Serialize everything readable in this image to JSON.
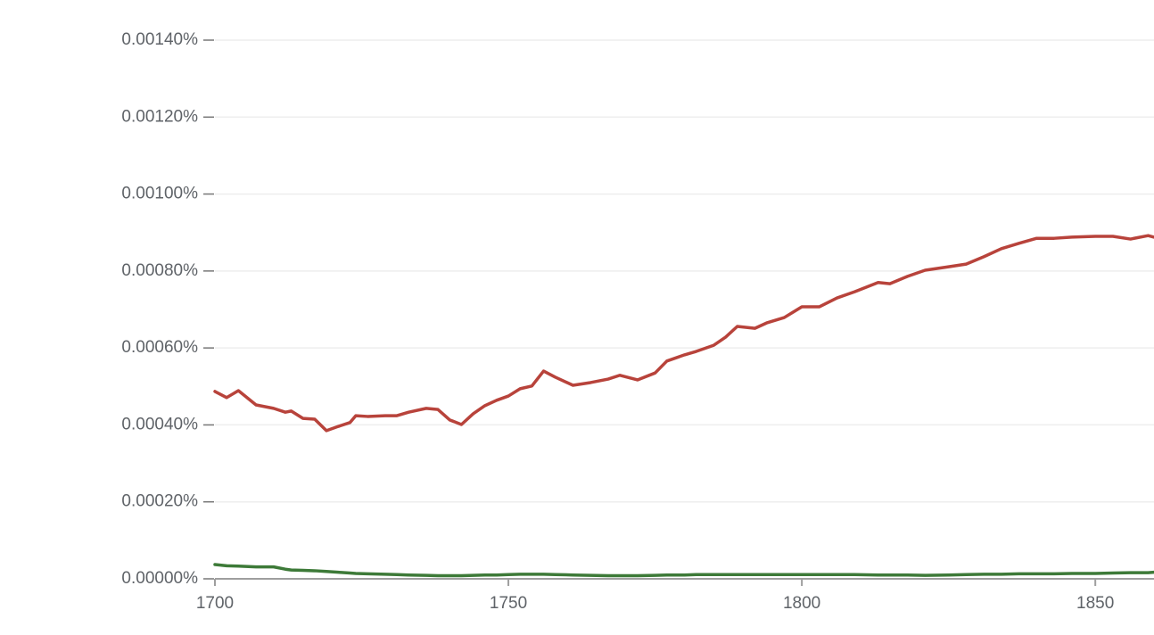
{
  "chart_data": {
    "type": "line",
    "x": [
      1700,
      1702,
      1704,
      1707,
      1710,
      1712,
      1713,
      1715,
      1717,
      1719,
      1721,
      1723,
      1724,
      1726,
      1729,
      1731,
      1733,
      1736,
      1738,
      1740,
      1742,
      1744,
      1746,
      1748,
      1750,
      1752,
      1754,
      1756,
      1758,
      1761,
      1764,
      1767,
      1769,
      1772,
      1775,
      1777,
      1780,
      1782,
      1785,
      1787,
      1789,
      1792,
      1794,
      1797,
      1800,
      1803,
      1806,
      1809,
      1813,
      1815,
      1818,
      1821,
      1825,
      1828,
      1831,
      1834,
      1837,
      1840,
      1843,
      1846,
      1850,
      1853,
      1856,
      1859,
      1860
    ],
    "series": [
      {
        "color": "#b8433b",
        "values": [
          0.000487,
          0.000471,
          0.000489,
          0.000452,
          0.000443,
          0.000433,
          0.000436,
          0.000417,
          0.000415,
          0.000385,
          0.000396,
          0.000406,
          0.000424,
          0.000422,
          0.000424,
          0.000424,
          0.000433,
          0.000443,
          0.00044,
          0.000413,
          0.000401,
          0.000429,
          0.00045,
          0.000464,
          0.000475,
          0.000494,
          0.000501,
          0.00054,
          0.000524,
          0.000503,
          0.00051,
          0.000519,
          0.000529,
          0.000517,
          0.000535,
          0.000566,
          0.000582,
          0.000591,
          0.000607,
          0.000628,
          0.000656,
          0.000651,
          0.000665,
          0.000679,
          0.000707,
          0.000707,
          0.00073,
          0.000746,
          0.00077,
          0.000767,
          0.000786,
          0.000802,
          0.000811,
          0.000818,
          0.000837,
          0.000858,
          0.000872,
          0.000885,
          0.000885,
          0.000888,
          0.00089,
          0.00089,
          0.000883,
          0.000892,
          0.000888
        ]
      },
      {
        "color": "#3d7a38",
        "values": [
          3.7e-05,
          3.4e-05,
          3.3e-05,
          3.1e-05,
          3.1e-05,
          2.5e-05,
          2.3e-05,
          2.2e-05,
          2.1e-05,
          1.9e-05,
          1.7e-05,
          1.5e-05,
          1.4e-05,
          1.3e-05,
          1.2e-05,
          1.1e-05,
          1e-05,
          9e-06,
          8e-06,
          8e-06,
          8e-06,
          9e-06,
          1e-05,
          1e-05,
          1.1e-05,
          1.2e-05,
          1.2e-05,
          1.2e-05,
          1.1e-05,
          1e-05,
          9e-06,
          8e-06,
          8e-06,
          8e-06,
          9e-06,
          1e-05,
          1e-05,
          1.1e-05,
          1.1e-05,
          1.1e-05,
          1.1e-05,
          1.1e-05,
          1.1e-05,
          1.1e-05,
          1.1e-05,
          1.1e-05,
          1.1e-05,
          1.1e-05,
          1e-05,
          1e-05,
          1e-05,
          9e-06,
          1e-05,
          1.1e-05,
          1.2e-05,
          1.2e-05,
          1.3e-05,
          1.3e-05,
          1.3e-05,
          1.4e-05,
          1.4e-05,
          1.5e-05,
          1.6e-05,
          1.6e-05,
          1.7e-05
        ]
      }
    ],
    "xlim": [
      1700,
      1860
    ],
    "xticks": [
      1700,
      1750,
      1800,
      1850
    ],
    "ylim": [
      0,
      0.0014
    ],
    "yticks": [
      {
        "value": 0,
        "label": "0.00000%"
      },
      {
        "value": 0.0002,
        "label": "0.00020%"
      },
      {
        "value": 0.0004,
        "label": "0.00040%"
      },
      {
        "value": 0.0006,
        "label": "0.00060%"
      },
      {
        "value": 0.0008,
        "label": "0.00080%"
      },
      {
        "value": 0.001,
        "label": "0.00100%"
      },
      {
        "value": 0.0012,
        "label": "0.00120%"
      },
      {
        "value": 0.0014,
        "label": "0.00140%"
      }
    ],
    "grid": true
  }
}
